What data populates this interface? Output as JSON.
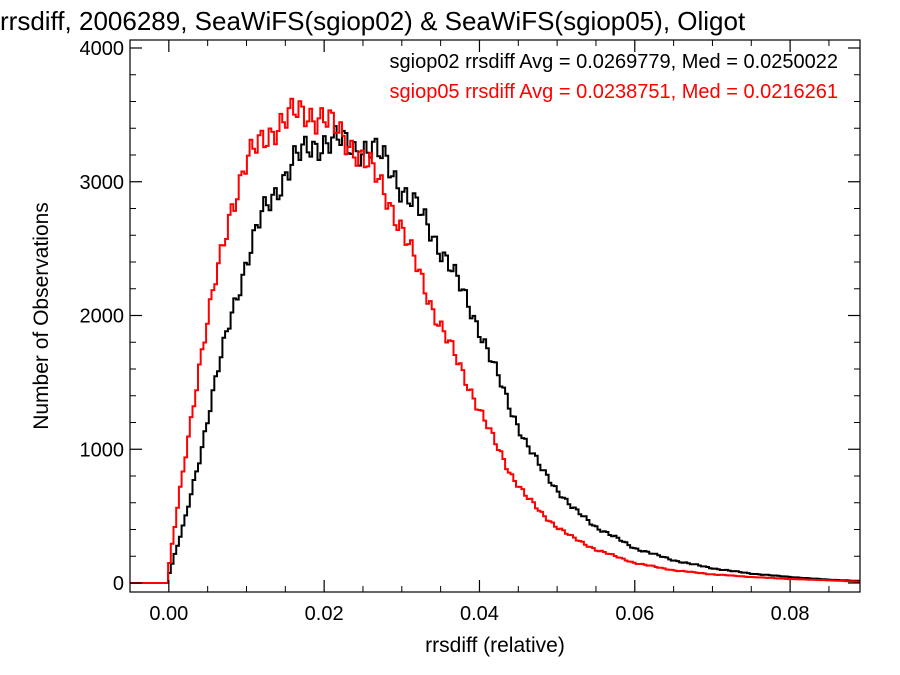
{
  "colors": {
    "background": "#ffffff",
    "axis": "#000000",
    "sgiop02": "#000000",
    "sgiop05": "#ff0000"
  },
  "chart_data": {
    "type": "line",
    "step": true,
    "title": "rrsdiff, 2006289, SeaWiFS(sgiop02) & SeaWiFS(sgiop05), Oligot",
    "xlabel": "rrsdiff (relative)",
    "ylabel": "Number of Observations",
    "xlim": [
      -0.005,
      0.089
    ],
    "ylim": [
      0,
      4000
    ],
    "xticks": [
      "0.00",
      "0.02",
      "0.04",
      "0.06",
      "0.08"
    ],
    "xtick_values": [
      0.0,
      0.02,
      0.04,
      0.06,
      0.08
    ],
    "yticks": [
      "0",
      "1000",
      "2000",
      "3000",
      "4000"
    ],
    "ytick_values": [
      0,
      1000,
      2000,
      3000,
      4000
    ],
    "annotations": [
      "sgiop02 rrsdiff Avg = 0.0269779, Med = 0.0250022",
      "sgiop05 rrsdiff Avg = 0.0238751, Med = 0.0216261"
    ],
    "series": [
      {
        "name": "sgiop02",
        "color": "#000000",
        "x": [
          -0.005,
          -0.0001,
          0.0,
          0.002,
          0.004,
          0.006,
          0.008,
          0.01,
          0.012,
          0.014,
          0.016,
          0.018,
          0.02,
          0.022,
          0.024,
          0.026,
          0.028,
          0.03,
          0.032,
          0.034,
          0.036,
          0.038,
          0.04,
          0.042,
          0.044,
          0.046,
          0.048,
          0.05,
          0.052,
          0.055,
          0.06,
          0.065,
          0.07,
          0.075,
          0.08,
          0.085,
          0.089
        ],
        "values": [
          0,
          0,
          60,
          450,
          950,
          1500,
          2000,
          2400,
          2750,
          2950,
          3150,
          3250,
          3300,
          3300,
          3250,
          3250,
          3150,
          2950,
          2800,
          2600,
          2400,
          2150,
          1900,
          1600,
          1300,
          1050,
          850,
          700,
          560,
          420,
          260,
          170,
          110,
          70,
          45,
          25,
          15
        ]
      },
      {
        "name": "sgiop05",
        "color": "#ff0000",
        "x": [
          -0.005,
          -0.0001,
          0.0,
          0.002,
          0.004,
          0.006,
          0.008,
          0.01,
          0.012,
          0.014,
          0.016,
          0.018,
          0.02,
          0.022,
          0.024,
          0.026,
          0.028,
          0.03,
          0.032,
          0.034,
          0.036,
          0.038,
          0.04,
          0.042,
          0.044,
          0.046,
          0.048,
          0.05,
          0.052,
          0.055,
          0.06,
          0.065,
          0.07,
          0.075,
          0.08,
          0.085,
          0.089
        ],
        "values": [
          0,
          0,
          120,
          900,
          1650,
          2250,
          2800,
          3150,
          3300,
          3430,
          3500,
          3510,
          3480,
          3350,
          3250,
          3100,
          2900,
          2650,
          2350,
          2050,
          1800,
          1550,
          1300,
          1050,
          820,
          650,
          520,
          420,
          340,
          250,
          150,
          95,
          65,
          45,
          30,
          20,
          10
        ]
      }
    ]
  }
}
